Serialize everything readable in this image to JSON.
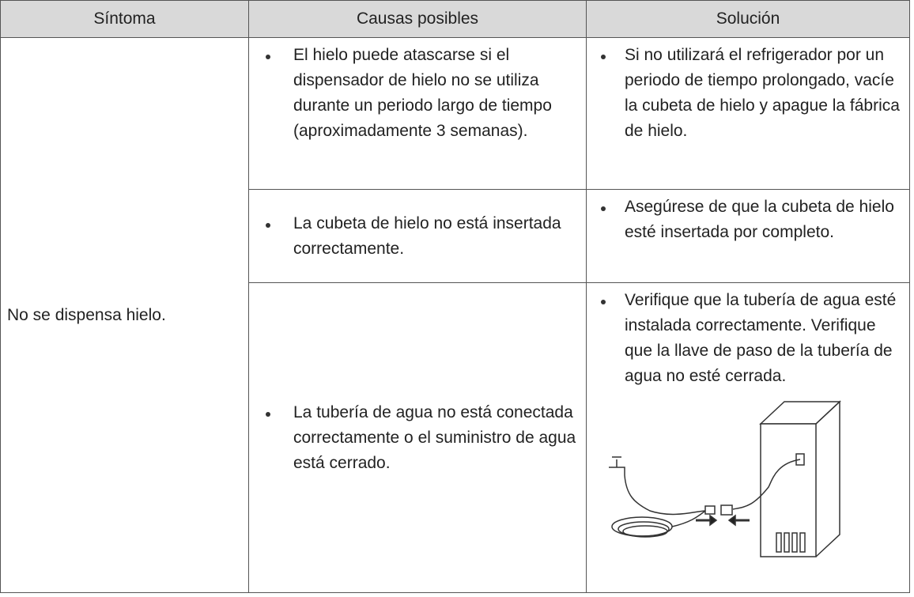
{
  "table": {
    "header": [
      "Síntoma",
      "Causas posibles",
      "Solución"
    ],
    "symptom": "No se dispensa hielo.",
    "rows": [
      {
        "cause": "El hielo puede atascarse si el dispensador de hielo no se utiliza durante un periodo largo de tiempo (aproximadamente 3 semanas).",
        "solution": "Si no utilizará el refrigerador por un periodo de tiempo prolongado, vacíe la cubeta de hielo y apague la fábrica de hielo."
      },
      {
        "cause": "La cubeta de hielo no está insertada correctamente.",
        "solution": "Asegúrese de que la cubeta de hielo esté insertada por completo."
      },
      {
        "cause": "La tubería de agua no está conectada correctamente o el suministro de agua está cerrado.",
        "solution": "Verifique que la tubería de agua esté instalada correctamente. Verifique que la llave de paso de la tubería de agua no esté cerrada."
      }
    ]
  }
}
